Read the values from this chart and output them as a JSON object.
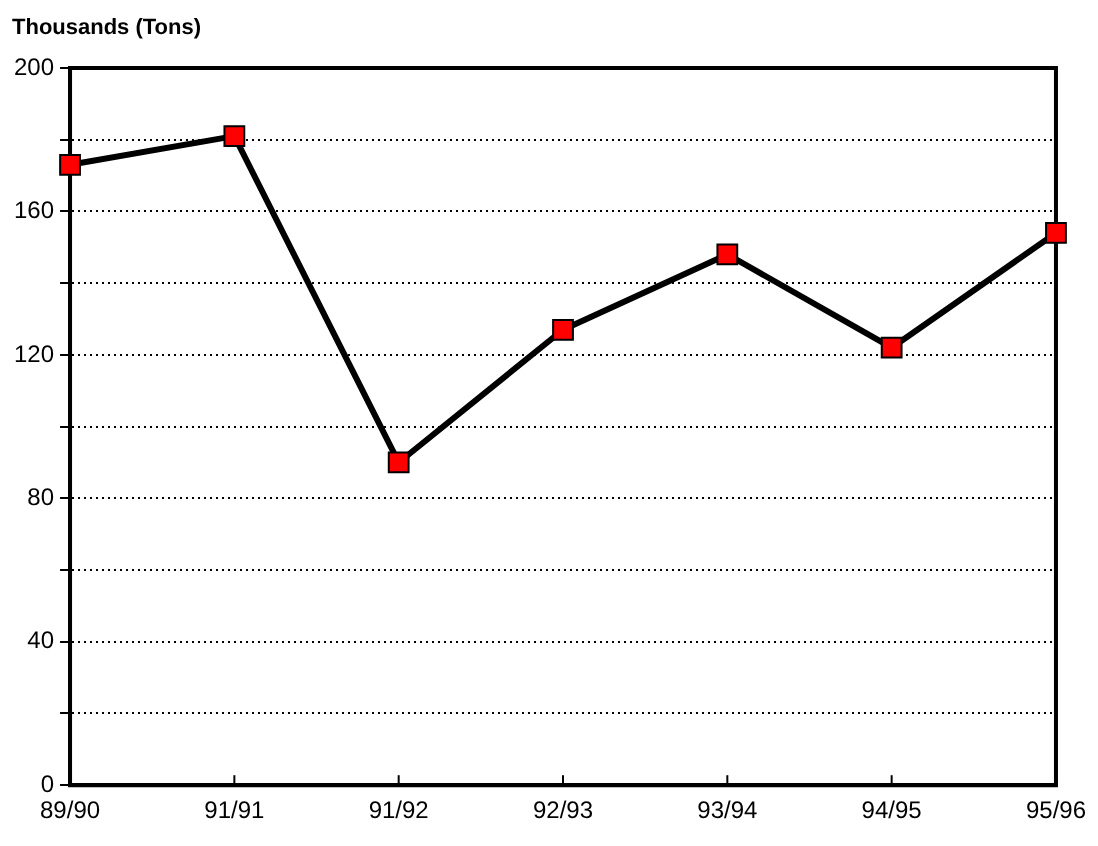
{
  "chart_data": {
    "type": "line",
    "ylabel": "Thousands (Tons)",
    "categories": [
      "89/90",
      "91/91",
      "91/92",
      "92/93",
      "93/94",
      "94/95",
      "95/96"
    ],
    "series": [
      {
        "color": "#ff0000",
        "values": [
          173,
          181,
          90,
          127,
          148,
          122,
          154
        ]
      }
    ],
    "ylim": [
      0,
      200
    ],
    "yticks": [
      0,
      {
        "value": 20,
        "label": null
      },
      40,
      {
        "value": 60,
        "label": null
      },
      80,
      {
        "value": 100,
        "label": null
      },
      120,
      {
        "value": 140,
        "label": null
      },
      160,
      {
        "value": 180,
        "label": null
      },
      200
    ],
    "grid": "y",
    "legend": false,
    "marker": "square",
    "line_style": "solid"
  }
}
